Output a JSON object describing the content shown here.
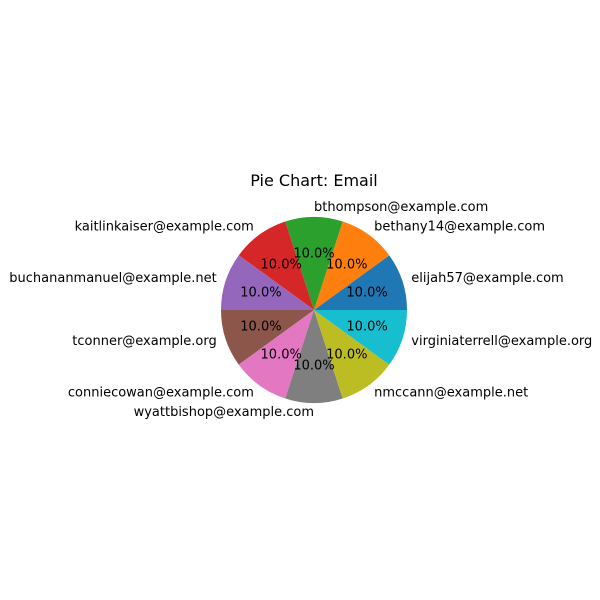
{
  "chart_data": {
    "type": "pie",
    "title": "Pie Chart: Email",
    "categories": [
      "elijah57@example.com",
      "bethany14@example.com",
      "bthompson@example.com",
      "kaitlinkaiser@example.com",
      "buchananmanuel@example.net",
      "tconner@example.org",
      "conniecowan@example.com",
      "wyattbishop@example.com",
      "nmccann@example.net",
      "virginiaterrell@example.org"
    ],
    "values": [
      10,
      10,
      10,
      10,
      10,
      10,
      10,
      10,
      10,
      10
    ],
    "percent_labels": [
      "10.0%",
      "10.0%",
      "10.0%",
      "10.0%",
      "10.0%",
      "10.0%",
      "10.0%",
      "10.0%",
      "10.0%",
      "10.0%"
    ],
    "colors": [
      "#1f77b4",
      "#ff7f0e",
      "#2ca02c",
      "#d62728",
      "#9467bd",
      "#8c564b",
      "#e377c2",
      "#7f7f7f",
      "#bcbd22",
      "#17becf"
    ],
    "start_angle_deg": 0,
    "direction": "counterclockwise"
  }
}
